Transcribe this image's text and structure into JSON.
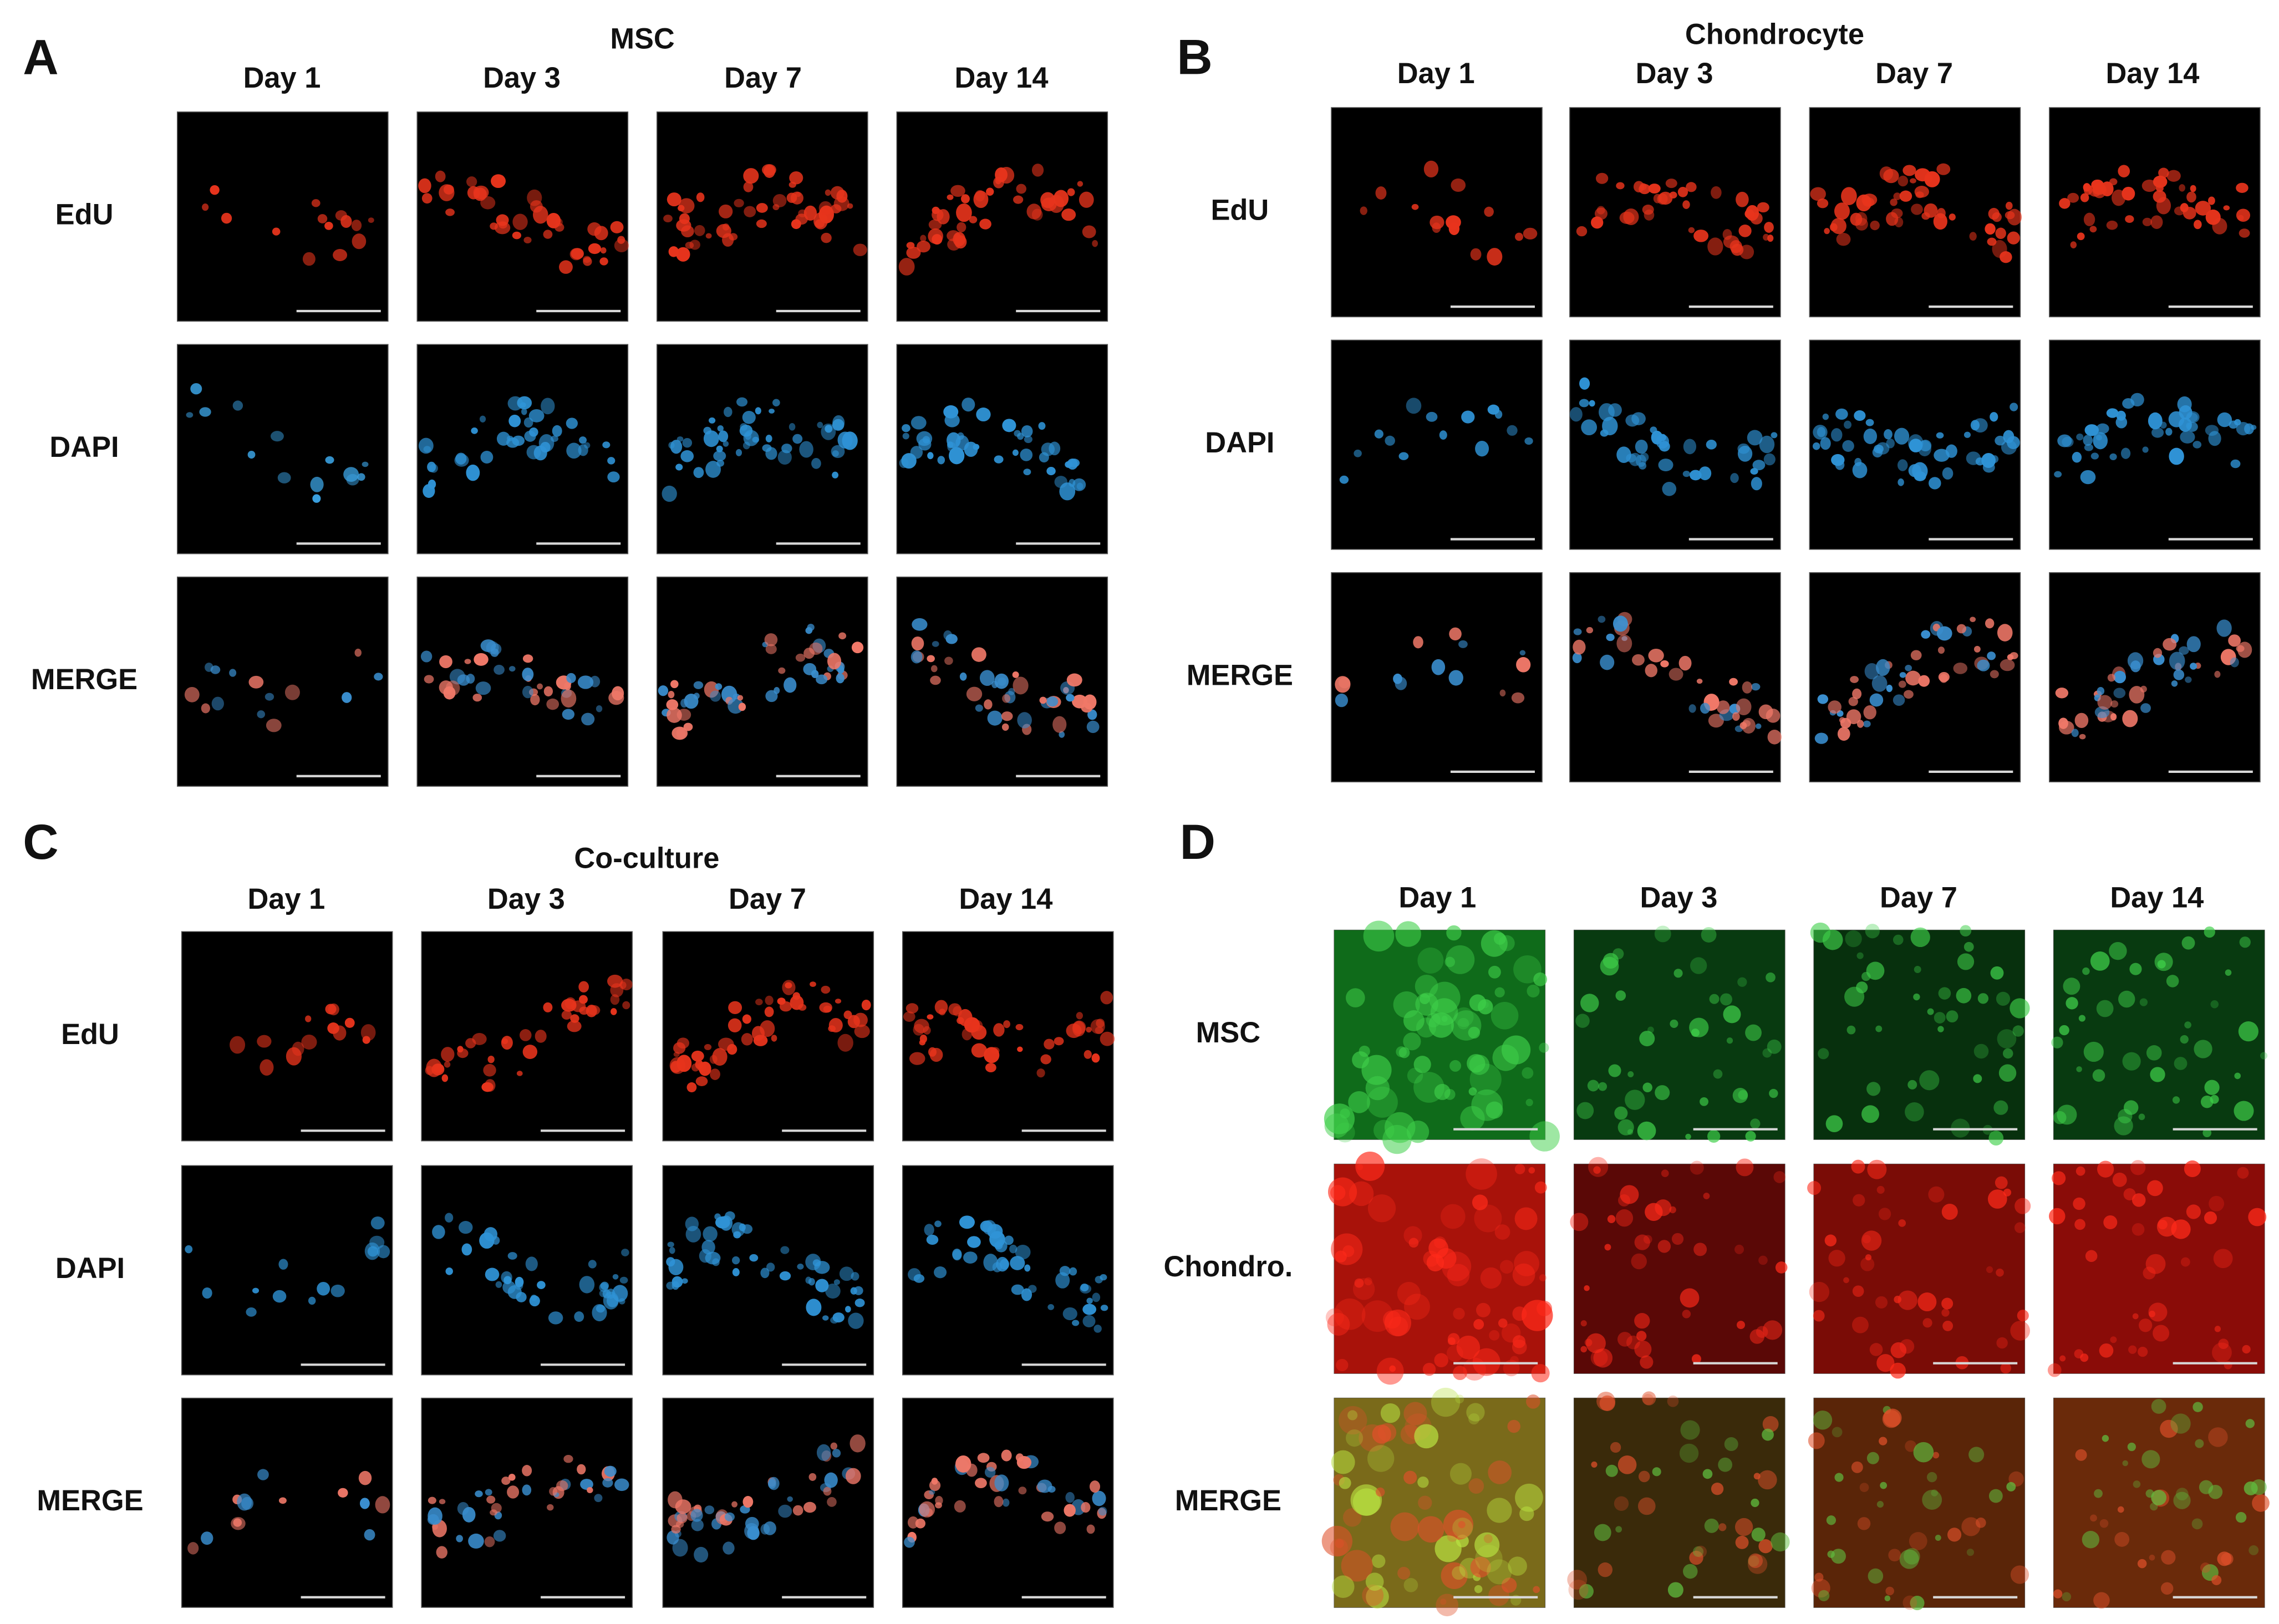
{
  "panels": [
    {
      "letter": "A",
      "title": "MSC",
      "columns": [
        "Day 1",
        "Day 3",
        "Day 7",
        "Day 14"
      ],
      "rows": [
        "EdU",
        "DAPI",
        "MERGE"
      ]
    },
    {
      "letter": "B",
      "title": "Chondrocyte",
      "columns": [
        "Day 1",
        "Day 3",
        "Day 7",
        "Day 14"
      ],
      "rows": [
        "EdU",
        "DAPI",
        "MERGE"
      ]
    },
    {
      "letter": "C",
      "title": "Co-culture",
      "columns": [
        "Day 1",
        "Day 3",
        "Day 7",
        "Day 14"
      ],
      "rows": [
        "EdU",
        "DAPI",
        "MERGE"
      ]
    },
    {
      "letter": "D",
      "columns": [
        "Day 1",
        "Day 3",
        "Day 7",
        "Day 14"
      ],
      "rows": [
        "MSC",
        "Chondro.",
        "MERGE"
      ]
    }
  ]
}
